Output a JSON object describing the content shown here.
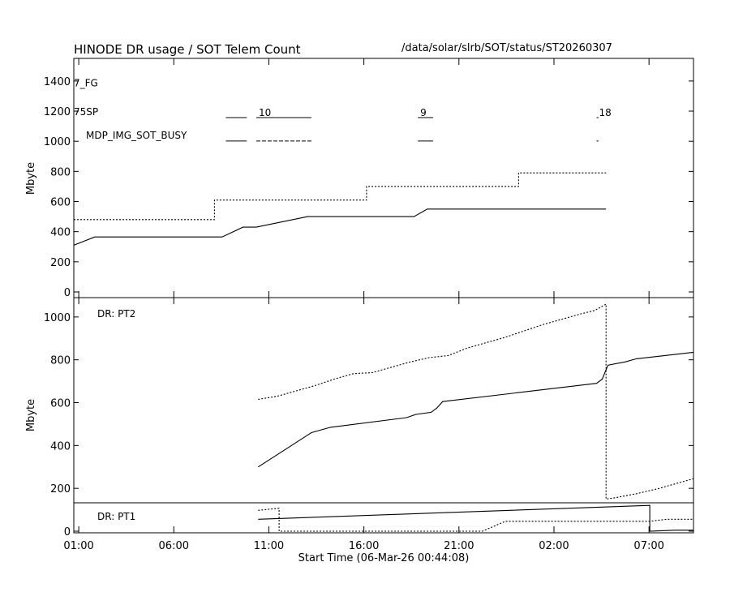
{
  "header": {
    "title": "HINODE DR usage / SOT Telem Count",
    "path": "/data/solar/slrb/SOT/status/ST20260307"
  },
  "colors": {
    "line": "#000000",
    "background": "#ffffff"
  },
  "chart_data": [
    {
      "type": "line",
      "ylabel": "Mbyte",
      "ylim": [
        0,
        1550
      ],
      "yticks": [
        "0",
        "200",
        "400",
        "600",
        "800",
        "1000",
        "1200",
        "1400"
      ],
      "x_unit": "hours since 06-Mar-26 00:44:08",
      "xlim": [
        0,
        32.6
      ],
      "status_rows": [
        {
          "label": "7_FG",
          "y": 1390,
          "segments": []
        },
        {
          "label": "75SP",
          "y": 1200,
          "segments": [
            {
              "x0": 8.0,
              "x1": 9.1,
              "label": ""
            },
            {
              "x0": 9.6,
              "x1": 12.5,
              "label": "10"
            },
            {
              "x0": 18.1,
              "x1": 18.9,
              "label": "9"
            },
            {
              "x0": 27.5,
              "x1": 27.6,
              "label": "18"
            }
          ]
        },
        {
          "label": "MDP_IMG_SOT_BUSY",
          "y": 1045,
          "segments": [
            {
              "x0": 8.0,
              "x1": 9.1,
              "style": "solid"
            },
            {
              "x0": 9.6,
              "x1": 12.5,
              "style": "dashed"
            },
            {
              "x0": 18.1,
              "x1": 18.9,
              "style": "solid"
            },
            {
              "x0": 27.5,
              "x1": 27.6,
              "style": "solid"
            }
          ]
        }
      ],
      "series": [
        {
          "style": "solid",
          "x": [
            0,
            1.1,
            7.8,
            8.9,
            9.6,
            12.3,
            17.9,
            18.6,
            28.0
          ],
          "y": [
            310,
            365,
            365,
            430,
            430,
            500,
            500,
            550,
            550
          ]
        },
        {
          "style": "dotted",
          "x": [
            0,
            7.4,
            7.4,
            15.4,
            15.4,
            23.4,
            23.4,
            28.0
          ],
          "y": [
            480,
            480,
            610,
            610,
            700,
            700,
            790,
            790
          ]
        }
      ]
    },
    {
      "type": "line",
      "title": "DR: PT2",
      "ylabel": "Mbyte",
      "ylim": [
        0,
        1060
      ],
      "yticks": [
        "0",
        "200",
        "400",
        "600",
        "800",
        "1000"
      ],
      "xlim": [
        0,
        32.6
      ],
      "series": [
        {
          "style": "solid",
          "x": [
            9.7,
            12.5,
            13.5,
            17.5,
            18.0,
            18.8,
            19.1,
            19.4,
            27.5,
            27.8,
            28.1,
            29.0,
            29.6,
            32.6
          ],
          "y": [
            300,
            460,
            485,
            530,
            545,
            555,
            575,
            605,
            690,
            710,
            775,
            790,
            805,
            835
          ]
        },
        {
          "style": "dotted",
          "x": [
            9.7,
            10.7,
            11.7,
            12.7,
            13.7,
            14.7,
            15.7,
            16.7,
            17.7,
            18.7,
            19.7,
            20.7,
            21.7,
            22.7,
            23.7,
            24.7,
            25.7,
            26.7,
            27.4,
            28.0,
            28.0,
            28.4,
            29.6,
            30.8,
            32.0,
            32.6
          ],
          "y": [
            615,
            630,
            655,
            680,
            710,
            735,
            740,
            765,
            790,
            810,
            820,
            855,
            880,
            905,
            935,
            965,
            990,
            1015,
            1030,
            1060,
            150,
            155,
            175,
            200,
            230,
            245
          ]
        }
      ]
    },
    {
      "type": "line",
      "title": "DR: PT1",
      "ylim": [
        0,
        135
      ],
      "yticks": [
        "0"
      ],
      "xticks": [
        "01:00",
        "06:00",
        "11:00",
        "16:00",
        "21:00",
        "02:00",
        "07:00"
      ],
      "xtick_positions": [
        0.26,
        5.26,
        10.26,
        15.26,
        20.26,
        25.26,
        30.26
      ],
      "xlabel": "Start Time (06-Mar-26 00:44:08)",
      "xlim": [
        0,
        32.6
      ],
      "series": [
        {
          "style": "solid",
          "x": [
            9.7,
            30.3,
            30.3,
            31.6,
            32.6
          ],
          "y": [
            60,
            130,
            0,
            5,
            5
          ]
        },
        {
          "style": "dotted",
          "x": [
            9.7,
            10.7,
            10.8,
            10.8,
            21.5,
            22.7,
            22.7,
            30.3,
            31.2,
            32.6
          ],
          "y": [
            105,
            115,
            115,
            0,
            0,
            50,
            50,
            50,
            60,
            60
          ]
        }
      ]
    }
  ]
}
